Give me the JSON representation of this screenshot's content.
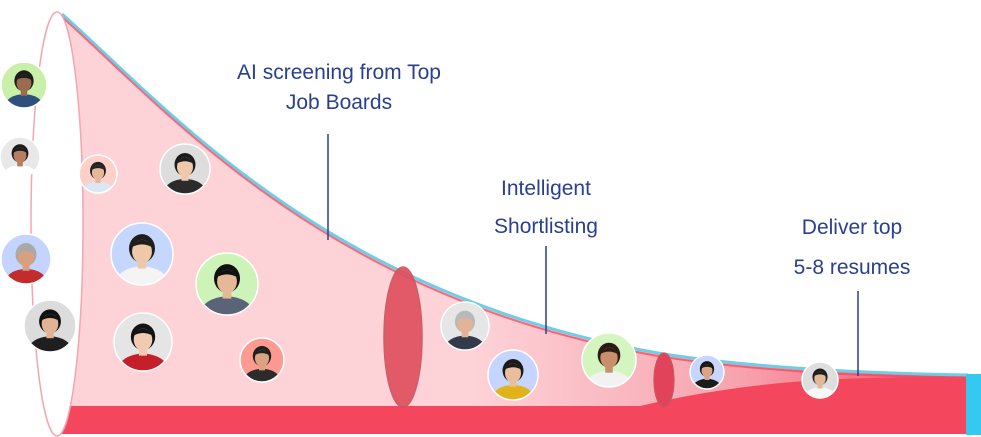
{
  "stages": [
    {
      "id": "screening",
      "line1": "AI screening from Top",
      "line2": "Job Boards"
    },
    {
      "id": "shortlisting",
      "line1": "Intelligent",
      "line2": "Shortlisting"
    },
    {
      "id": "deliver",
      "line1": "Deliver top",
      "line2": "5-8 resumes"
    }
  ],
  "colors": {
    "label_text": "#2a3f8f",
    "funnel_fill_light": "#fdd3d8",
    "funnel_fill_mid": "#f7a3ae",
    "funnel_base": "#f4475e",
    "funnel_edge": "#6fcde6",
    "ring": "#c8565f",
    "tail_accent": "#35c8f0"
  },
  "candidates": [
    {
      "name": "candidate-1",
      "bg": "#c8f0a8",
      "skin": "#9a6b4f",
      "hair": "#1d1d1d",
      "shirt": "#2f4f7f"
    },
    {
      "name": "candidate-2",
      "bg": "#e8e8e8",
      "skin": "#b57e61",
      "hair": "#1b1b1b",
      "shirt": "#ffffff"
    },
    {
      "name": "candidate-3",
      "bg": "#ffcfc9",
      "skin": "#e5b899",
      "hair": "#222222",
      "shirt": "#dbe7f3"
    },
    {
      "name": "candidate-4",
      "bg": "#dddddd",
      "skin": "#f0c9ac",
      "hair": "#1c1c1c",
      "shirt": "#2b2b2b"
    },
    {
      "name": "candidate-5",
      "bg": "#c4d3ff",
      "skin": "#d9a07f",
      "hair": "#a9a9a9",
      "shirt": "#c22c2c"
    },
    {
      "name": "candidate-6",
      "bg": "#c5d7ff",
      "skin": "#efc7a9",
      "hair": "#1e1e1e",
      "shirt": "#f4f4f4"
    },
    {
      "name": "candidate-7",
      "bg": "#cdf3b9",
      "skin": "#e6b895",
      "hair": "#111111",
      "shirt": "#5b6378"
    },
    {
      "name": "candidate-8",
      "bg": "#dcdcdc",
      "skin": "#e2b394",
      "hair": "#111111",
      "shirt": "#1f1f1f"
    },
    {
      "name": "candidate-9",
      "bg": "#e5e5e5",
      "skin": "#f1cbb1",
      "hair": "#131313",
      "shirt": "#c51f2c"
    },
    {
      "name": "candidate-10",
      "bg": "#ff9a91",
      "skin": "#d9a47f",
      "hair": "#202020",
      "shirt": "#2b2b2b"
    },
    {
      "name": "candidate-11",
      "bg": "#e6e6e6",
      "skin": "#e1b397",
      "hair": "#b9b9b9",
      "shirt": "#333a4a"
    },
    {
      "name": "candidate-12",
      "bg": "#c5d5ff",
      "skin": "#e8be9b",
      "hair": "#1a1a1a",
      "shirt": "#e2b21b"
    },
    {
      "name": "candidate-13",
      "bg": "#d5f5c0",
      "skin": "#c98e6c",
      "hair": "#2a1c14",
      "shirt": "#f2f2f2"
    },
    {
      "name": "candidate-14",
      "bg": "#c8d5ff",
      "skin": "#d9a67f",
      "hair": "#151515",
      "shirt": "#1c1c1c"
    },
    {
      "name": "candidate-15",
      "bg": "#dedede",
      "skin": "#e4b797",
      "hair": "#1d1d1d",
      "shirt": "#f7f7f7"
    }
  ]
}
